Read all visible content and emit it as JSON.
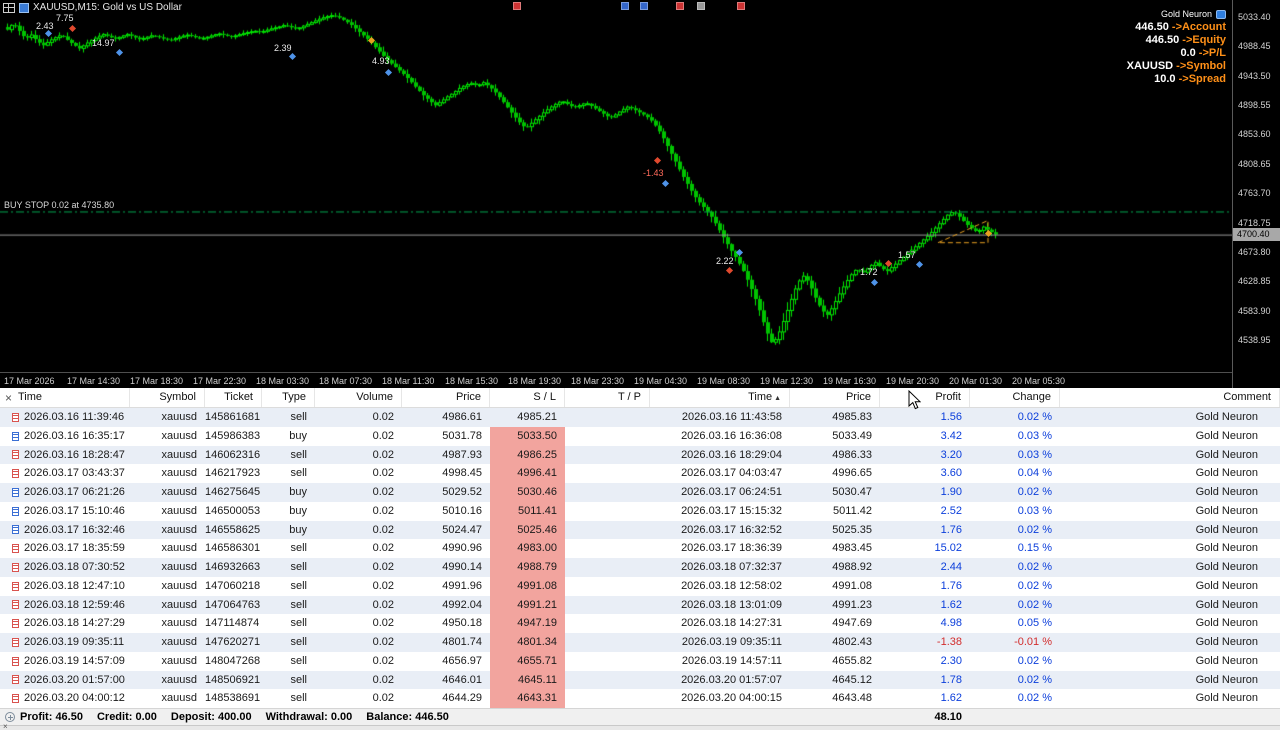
{
  "colors": {
    "candle": "#00e400",
    "candle_fill": "#00c400",
    "buy_stop_line": "#00a550",
    "current_price_line": "#9a9a9a",
    "wedge": "#e8a020",
    "annotation_default": "#e8e8e8",
    "panel_label": "#ff9018",
    "buy_icon": "#3b6fd4",
    "sell_icon": "#d9534f",
    "profit_pos": "#0b3edb",
    "profit_neg": "#d22d2d",
    "sl_bg": "#f2a49e"
  },
  "chart_data": {
    "type": "candlestick",
    "title": "XAUUSD,M15:  Gold vs US Dollar",
    "symbol": "XAUUSD",
    "timeframe": "M15",
    "price_axis_top": 5033.4,
    "price_axis_bottom": 4538.95,
    "y_ticks": [
      "5033.40",
      "4988.45",
      "4943.50",
      "4898.55",
      "4853.60",
      "4808.65",
      "4763.70",
      "4718.75",
      "4673.80",
      "4628.85",
      "4583.90",
      "4538.95"
    ],
    "x_ticks": [
      "17 Mar 2026",
      "17 Mar 14:30",
      "17 Mar 18:30",
      "17 Mar 22:30",
      "18 Mar 03:30",
      "18 Mar 07:30",
      "18 Mar 11:30",
      "18 Mar 15:30",
      "18 Mar 19:30",
      "18 Mar 23:30",
      "19 Mar 04:30",
      "19 Mar 08:30",
      "19 Mar 12:30",
      "19 Mar 16:30",
      "19 Mar 20:30",
      "20 Mar 01:30",
      "20 Mar 05:30"
    ],
    "current_price": 4700.4,
    "current_price_label": "4700.40",
    "buy_stop_line": {
      "label": "BUY STOP 0.02 at 4735.80",
      "price": 4735.8
    },
    "closes": [
      5014,
      5024,
      5012,
      5000,
      5006,
      4996,
      4990,
      4997,
      5002,
      5006,
      4998,
      4991,
      4985,
      4992,
      4998,
      5003,
      5007,
      5003,
      5000,
      5004,
      5007,
      5003,
      4999,
      5002,
      5005,
      5003,
      5000,
      4998,
      5001,
      5004,
      5006,
      5003,
      5000,
      5002,
      5005,
      5008,
      5006,
      5003,
      5005,
      5008,
      5010,
      5012,
      5010,
      5013,
      5016,
      5018,
      5021,
      5018,
      5015,
      5019,
      5023,
      5027,
      5031,
      5034,
      5036,
      5033,
      5028,
      5022,
      5014,
      5006,
      4998,
      4988,
      4978,
      4968,
      4960,
      4952,
      4944,
      4934,
      4924,
      4914,
      4906,
      4898,
      4904,
      4911,
      4917,
      4924,
      4929,
      4932,
      4928,
      4933,
      4927,
      4918,
      4907,
      4895,
      4883,
      4872,
      4863,
      4871,
      4879,
      4887,
      4894,
      4900,
      4905,
      4900,
      4895,
      4898,
      4902,
      4897,
      4891,
      4885,
      4879,
      4884,
      4891,
      4896,
      4892,
      4887,
      4882,
      4874,
      4862,
      4846,
      4828,
      4810,
      4792,
      4776,
      4760,
      4748,
      4738,
      4726,
      4710,
      4694,
      4678,
      4664,
      4648,
      4628,
      4606,
      4580,
      4552,
      4532,
      4548,
      4572,
      4598,
      4622,
      4638,
      4628,
      4606,
      4588,
      4576,
      4590,
      4608,
      4624,
      4638,
      4648,
      4642,
      4650,
      4658,
      4650,
      4644,
      4652,
      4660,
      4668,
      4676,
      4684,
      4692,
      4700,
      4710,
      4720,
      4730,
      4736,
      4728,
      4718,
      4710,
      4704,
      4712,
      4706,
      4700.4
    ],
    "annotations": [
      {
        "text": "2.43",
        "x": 36,
        "y": 21,
        "color": "#e8e8e8"
      },
      {
        "text": "7.75",
        "x": 56,
        "y": 13,
        "color": "#e8e8e8"
      },
      {
        "text": "14.97",
        "x": 92,
        "y": 38,
        "color": "#e8e8e8"
      },
      {
        "text": "2.39",
        "x": 274,
        "y": 43,
        "color": "#e8e8e8"
      },
      {
        "text": "4.93",
        "x": 372,
        "y": 56,
        "color": "#e8e8e8"
      },
      {
        "text": "-1.43",
        "x": 643,
        "y": 168,
        "color": "#ff6a5a"
      },
      {
        "text": "2.22",
        "x": 716,
        "y": 256,
        "color": "#e8e8e8"
      },
      {
        "text": "1.72",
        "x": 860,
        "y": 267,
        "color": "#e8e8e8"
      },
      {
        "text": "1.57",
        "x": 898,
        "y": 250,
        "color": "#e8e8e8"
      }
    ],
    "markers": [
      {
        "shape": "diamond",
        "x": 46,
        "y": 31,
        "color": "#4f93e8"
      },
      {
        "shape": "diamond",
        "x": 70,
        "y": 26,
        "color": "#e0492e"
      },
      {
        "shape": "diamond",
        "x": 117,
        "y": 50,
        "color": "#4f93e8"
      },
      {
        "shape": "diamond",
        "x": 290,
        "y": 54,
        "color": "#4f93e8"
      },
      {
        "shape": "diamond",
        "x": 369,
        "y": 38,
        "color": "#e8a020"
      },
      {
        "shape": "diamond",
        "x": 386,
        "y": 70,
        "color": "#4f93e8"
      },
      {
        "shape": "diamond",
        "x": 655,
        "y": 158,
        "color": "#e0492e"
      },
      {
        "shape": "diamond",
        "x": 663,
        "y": 181,
        "color": "#4f93e8"
      },
      {
        "shape": "diamond",
        "x": 737,
        "y": 250,
        "color": "#4f93e8"
      },
      {
        "shape": "diamond",
        "x": 727,
        "y": 268,
        "color": "#e0492e"
      },
      {
        "shape": "diamond",
        "x": 872,
        "y": 280,
        "color": "#4f93e8"
      },
      {
        "shape": "diamond",
        "x": 886,
        "y": 261,
        "color": "#e0492e"
      },
      {
        "shape": "diamond",
        "x": 917,
        "y": 262,
        "color": "#4f93e8"
      },
      {
        "shape": "diamond",
        "x": 986,
        "y": 231,
        "color": "#e8a020"
      }
    ],
    "top_icons": [
      {
        "name": "chart-object-icon",
        "color": "#cc3333",
        "x": 513
      },
      {
        "name": "chart-object-icon",
        "color": "#3366cc",
        "x": 621
      },
      {
        "name": "chart-object-icon",
        "color": "#3366cc",
        "x": 640
      },
      {
        "name": "chart-object-icon",
        "color": "#cc3333",
        "x": 676
      },
      {
        "name": "chart-object-icon",
        "color": "#999999",
        "x": 697
      },
      {
        "name": "chart-object-icon",
        "color": "#cc3333",
        "x": 737
      }
    ]
  },
  "account_panel": {
    "title": "Gold Neuron",
    "rows": [
      {
        "value": "446.50",
        "label": "->Account"
      },
      {
        "value": "446.50",
        "label": "->Equity"
      },
      {
        "value": "0.0",
        "label": "->P/L"
      },
      {
        "value": "XAUUSD",
        "label": "->Symbol"
      },
      {
        "value": "10.0",
        "label": "->Spread"
      }
    ]
  },
  "history_table": {
    "close_glyph": "×",
    "sort_indicator": "▲",
    "sort_column": 8,
    "columns": [
      "Time",
      "Symbol",
      "Ticket",
      "Type",
      "Volume",
      "Price",
      "S / L",
      "T / P",
      "Time",
      "Price",
      "Profit",
      "Change",
      "Comment"
    ],
    "rows": [
      {
        "sl_hit": false,
        "cells": [
          "2026.03.16 11:39:46",
          "xauusd",
          "145861681",
          "sell",
          "0.02",
          "4986.61",
          "4985.21",
          "",
          "2026.03.16 11:43:58",
          "4985.83",
          "1.56",
          "0.02 %",
          "Gold Neuron"
        ]
      },
      {
        "sl_hit": true,
        "cells": [
          "2026.03.16 16:35:17",
          "xauusd",
          "145986383",
          "buy",
          "0.02",
          "5031.78",
          "5033.50",
          "",
          "2026.03.16 16:36:08",
          "5033.49",
          "3.42",
          "0.03 %",
          "Gold Neuron"
        ]
      },
      {
        "sl_hit": true,
        "cells": [
          "2026.03.16 18:28:47",
          "xauusd",
          "146062316",
          "sell",
          "0.02",
          "4987.93",
          "4986.25",
          "",
          "2026.03.16 18:29:04",
          "4986.33",
          "3.20",
          "0.03 %",
          "Gold Neuron"
        ]
      },
      {
        "sl_hit": true,
        "cells": [
          "2026.03.17 03:43:37",
          "xauusd",
          "146217923",
          "sell",
          "0.02",
          "4998.45",
          "4996.41",
          "",
          "2026.03.17 04:03:47",
          "4996.65",
          "3.60",
          "0.04 %",
          "Gold Neuron"
        ]
      },
      {
        "sl_hit": true,
        "cells": [
          "2026.03.17 06:21:26",
          "xauusd",
          "146275645",
          "buy",
          "0.02",
          "5029.52",
          "5030.46",
          "",
          "2026.03.17 06:24:51",
          "5030.47",
          "1.90",
          "0.02 %",
          "Gold Neuron"
        ]
      },
      {
        "sl_hit": true,
        "cells": [
          "2026.03.17 15:10:46",
          "xauusd",
          "146500053",
          "buy",
          "0.02",
          "5010.16",
          "5011.41",
          "",
          "2026.03.17 15:15:32",
          "5011.42",
          "2.52",
          "0.03 %",
          "Gold Neuron"
        ]
      },
      {
        "sl_hit": true,
        "cells": [
          "2026.03.17 16:32:46",
          "xauusd",
          "146558625",
          "buy",
          "0.02",
          "5024.47",
          "5025.46",
          "",
          "2026.03.17 16:32:52",
          "5025.35",
          "1.76",
          "0.02 %",
          "Gold Neuron"
        ]
      },
      {
        "sl_hit": true,
        "cells": [
          "2026.03.17 18:35:59",
          "xauusd",
          "146586301",
          "sell",
          "0.02",
          "4990.96",
          "4983.00",
          "",
          "2026.03.17 18:36:39",
          "4983.45",
          "15.02",
          "0.15 %",
          "Gold Neuron"
        ]
      },
      {
        "sl_hit": true,
        "cells": [
          "2026.03.18 07:30:52",
          "xauusd",
          "146932663",
          "sell",
          "0.02",
          "4990.14",
          "4988.79",
          "",
          "2026.03.18 07:32:37",
          "4988.92",
          "2.44",
          "0.02 %",
          "Gold Neuron"
        ]
      },
      {
        "sl_hit": true,
        "cells": [
          "2026.03.18 12:47:10",
          "xauusd",
          "147060218",
          "sell",
          "0.02",
          "4991.96",
          "4991.08",
          "",
          "2026.03.18 12:58:02",
          "4991.08",
          "1.76",
          "0.02 %",
          "Gold Neuron"
        ]
      },
      {
        "sl_hit": true,
        "cells": [
          "2026.03.18 12:59:46",
          "xauusd",
          "147064763",
          "sell",
          "0.02",
          "4992.04",
          "4991.21",
          "",
          "2026.03.18 13:01:09",
          "4991.23",
          "1.62",
          "0.02 %",
          "Gold Neuron"
        ]
      },
      {
        "sl_hit": true,
        "cells": [
          "2026.03.18 14:27:29",
          "xauusd",
          "147114874",
          "sell",
          "0.02",
          "4950.18",
          "4947.19",
          "",
          "2026.03.18 14:27:31",
          "4947.69",
          "4.98",
          "0.05 %",
          "Gold Neuron"
        ]
      },
      {
        "sl_hit": true,
        "cells": [
          "2026.03.19 09:35:11",
          "xauusd",
          "147620271",
          "sell",
          "0.02",
          "4801.74",
          "4801.34",
          "",
          "2026.03.19 09:35:11",
          "4802.43",
          "-1.38",
          "-0.01 %",
          "Gold Neuron"
        ]
      },
      {
        "sl_hit": true,
        "cells": [
          "2026.03.19 14:57:09",
          "xauusd",
          "148047268",
          "sell",
          "0.02",
          "4656.97",
          "4655.71",
          "",
          "2026.03.19 14:57:11",
          "4655.82",
          "2.30",
          "0.02 %",
          "Gold Neuron"
        ]
      },
      {
        "sl_hit": true,
        "cells": [
          "2026.03.20 01:57:00",
          "xauusd",
          "148506921",
          "sell",
          "0.02",
          "4646.01",
          "4645.11",
          "",
          "2026.03.20 01:57:07",
          "4645.12",
          "1.78",
          "0.02 %",
          "Gold Neuron"
        ]
      },
      {
        "sl_hit": true,
        "cells": [
          "2026.03.20 04:00:12",
          "xauusd",
          "148538691",
          "sell",
          "0.02",
          "4644.29",
          "4643.31",
          "",
          "2026.03.20 04:00:15",
          "4643.48",
          "1.62",
          "0.02 %",
          "Gold Neuron"
        ]
      }
    ]
  },
  "status_bar": {
    "items": [
      {
        "label": "Profit:",
        "value": "46.50"
      },
      {
        "label": "Credit:",
        "value": "0.00"
      },
      {
        "label": "Deposit:",
        "value": "400.00"
      },
      {
        "label": "Withdrawal:",
        "value": "0.00"
      },
      {
        "label": "Balance:",
        "value": "446.50"
      }
    ],
    "column_total": "48.10"
  }
}
